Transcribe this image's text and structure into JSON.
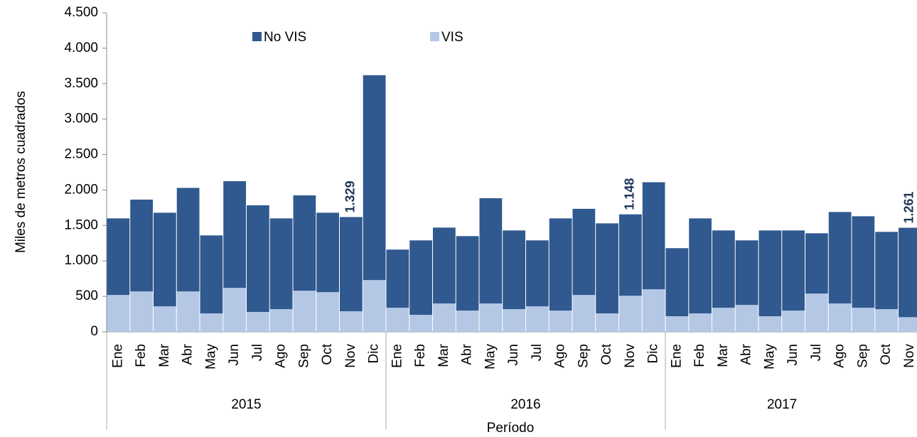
{
  "chart_data": {
    "type": "stacked_bar",
    "x_label": "Período",
    "y_label": "Miles de metros cuadrados",
    "legend": "top",
    "groups": [
      {
        "name": "2015",
        "categories": [
          "Ene",
          "Feb",
          "Mar",
          "Abr",
          "May",
          "Jun",
          "Jul",
          "Ago",
          "Sep",
          "Oct",
          "Nov",
          "Dic"
        ]
      },
      {
        "name": "2016",
        "categories": [
          "Ene",
          "Feb",
          "Mar",
          "Abr",
          "May",
          "Jun",
          "Jul",
          "Ago",
          "Sep",
          "Oct",
          "Nov",
          "Dic"
        ]
      },
      {
        "name": "2017",
        "categories": [
          "Ene",
          "Feb",
          "Mar",
          "Abr",
          "May",
          "Jun",
          "Jul",
          "Ago",
          "Sep",
          "Oct",
          "Nov"
        ]
      }
    ],
    "series": [
      {
        "name": "VIS",
        "color": "#b4c8e6",
        "label_color": "#c9d8ee",
        "values": [
          520,
          570,
          360,
          570,
          260,
          620,
          280,
          320,
          580,
          560,
          290,
          730,
          340,
          240,
          400,
          300,
          400,
          320,
          360,
          300,
          520,
          260,
          509,
          600,
          220,
          260,
          340,
          380,
          220,
          300,
          540,
          400,
          340,
          320,
          207
        ],
        "value_labels": [
          null,
          null,
          null,
          null,
          null,
          null,
          null,
          null,
          null,
          null,
          "290",
          null,
          null,
          null,
          null,
          null,
          null,
          null,
          null,
          null,
          null,
          null,
          "509",
          null,
          null,
          null,
          null,
          null,
          null,
          null,
          null,
          null,
          null,
          null,
          "207"
        ]
      },
      {
        "name": "No VIS",
        "color": "#30598f",
        "label_color": "#1f3558",
        "values": [
          1080,
          1295,
          1320,
          1460,
          1100,
          1505,
          1505,
          1280,
          1345,
          1120,
          1329,
          2890,
          820,
          1050,
          1070,
          1050,
          1485,
          1110,
          930,
          1300,
          1215,
          1270,
          1148,
          1510,
          960,
          1340,
          1090,
          910,
          1210,
          1130,
          850,
          1290,
          1290,
          1090,
          1261
        ],
        "value_labels": [
          null,
          null,
          null,
          null,
          null,
          null,
          null,
          null,
          null,
          null,
          "1.329",
          null,
          null,
          null,
          null,
          null,
          null,
          null,
          null,
          null,
          null,
          null,
          "1.148",
          null,
          null,
          null,
          null,
          null,
          null,
          null,
          null,
          null,
          null,
          null,
          "1.261"
        ]
      }
    ],
    "ylim": [
      0,
      4500
    ],
    "yticks": [
      0,
      500,
      {
        "value": 1000,
        "label": "1.000"
      },
      {
        "value": 1500,
        "label": "1.500"
      },
      {
        "value": 2000,
        "label": "2.000"
      },
      {
        "value": 2500,
        "label": "2.500"
      },
      {
        "value": 3000,
        "label": "3.000"
      },
      {
        "value": 3500,
        "label": "3.500"
      },
      {
        "value": 4000,
        "label": "4.000"
      },
      {
        "value": 4500,
        "label": "4.500"
      }
    ]
  }
}
